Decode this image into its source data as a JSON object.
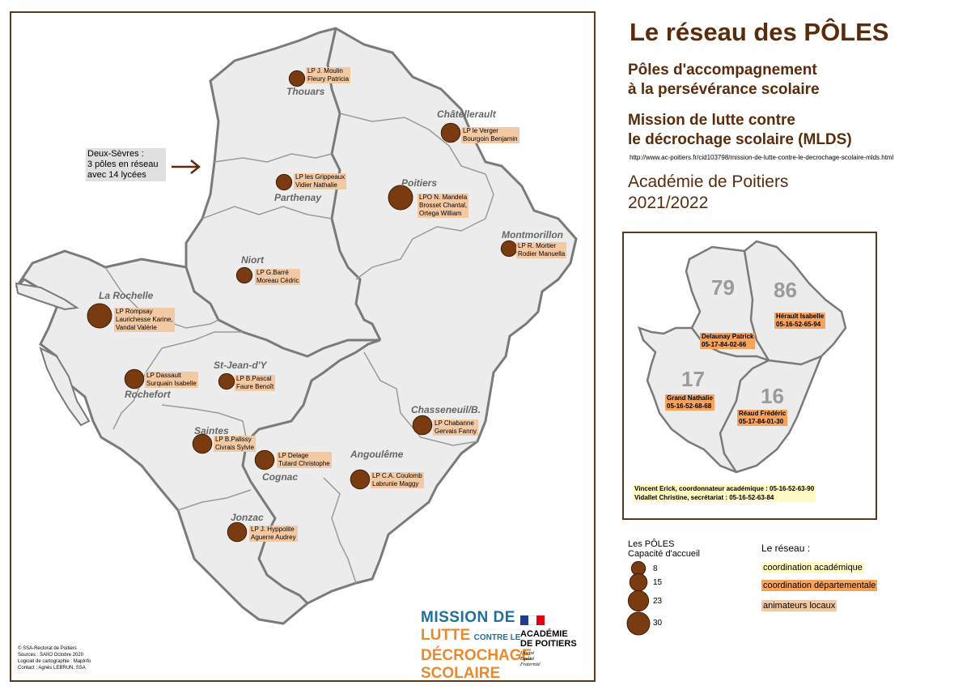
{
  "header": {
    "title": "Le réseau des PÔLES",
    "subtitle1": "Pôles d'accompagnement\nà la persévérance scolaire",
    "subtitle2": "Mission de lutte contre\nle décrochage scolaire (MLDS)",
    "url": "http://www.ac-poitiers.fr/cid103798/mission-de-lutte-contre-le-decrochage-scolaire-mlds.html",
    "academy": "Académie de Poitiers\n2021/2022"
  },
  "note": "Deux-Sèvres :\n3 pôles en réseau\navec 14 lycées",
  "cities": [
    "Thouars",
    "Châtellerault",
    "Poitiers",
    "Parthenay",
    "Montmorillon",
    "Niort",
    "La Rochelle",
    "St-Jean-d'Y",
    "Rochefort",
    "Chasseneuil/B.",
    "Saintes",
    "Angoulême",
    "Cognac",
    "Jonzac"
  ],
  "poles": [
    {
      "label": "LP J. Moulin\nFleury Patricia",
      "capacity": 8
    },
    {
      "label": "LP le Verger\nBourgoin Benjamin",
      "capacity": 15
    },
    {
      "label": "LP les Grippeaux\nVidier Nathalie",
      "capacity": 8
    },
    {
      "label": "LPO N. Mandela\nBrosset Chantal,\nOrtega William",
      "capacity": 30
    },
    {
      "label": "LP R. Mortier\nRodier Manuella",
      "capacity": 8
    },
    {
      "label": "LP G.Barré\nMoreau Cédric",
      "capacity": 8
    },
    {
      "label": "LP Rompsay\nLaurichesse Karine,\nVandal Valérie",
      "capacity": 30
    },
    {
      "label": "LP Dassault\nSurquain Isabelle",
      "capacity": 15
    },
    {
      "label": "LP B.Pascal\nFaure Benoît",
      "capacity": 8
    },
    {
      "label": "LP Chabanne\nGervais Fanny",
      "capacity": 15
    },
    {
      "label": "LP B.Palissy\nCivrais Sylvie",
      "capacity": 15
    },
    {
      "label": "LP Delage\nTutard Christophe",
      "capacity": 15
    },
    {
      "label": "LP C.A. Coulomb\nLabrunie Maggy",
      "capacity": 15
    },
    {
      "label": "LP J. Hyppolite\nAguerre Audrey",
      "capacity": 15
    }
  ],
  "departments": [
    {
      "number": "79",
      "contact": "Delaunay Patrick\n05-17-84-02-66"
    },
    {
      "number": "86",
      "contact": "Hérault Isabelle\n05-16-52-65-94"
    },
    {
      "number": "17",
      "contact": "Grand Nathalie\n05-16-52-68-68"
    },
    {
      "number": "16",
      "contact": "Réaud Frédéric\n05-17-84-01-30"
    }
  ],
  "coordination": "Vincent Erick, coordonnateur académique : 05-16-52-63-90\nVidallet Christine, secrétariat : 05-16-52-63-84",
  "legend": {
    "title": "Les PÔLES\nCapacité d'accueil",
    "values": [
      "8",
      "15",
      "23",
      "30"
    ]
  },
  "network": {
    "title": "Le réseau :",
    "items": [
      {
        "label": "coordination académique",
        "color": "#fff9c4"
      },
      {
        "label": "coordination départementale",
        "color": "#f7a35b"
      },
      {
        "label": "animateurs locaux",
        "color": "#f3c9a4"
      }
    ]
  },
  "credits": "© SSA-Rectorat de Poitiers\nSources : SAIIO Octobre 2020\nLogiciel de cartographie : MapInfo\nContact : Agnès LEBRUN, SSA",
  "logos": {
    "mission_l1": "MISSION DE",
    "mission_l2a": "LUTTE",
    "mission_l2b": "CONTRE LE",
    "mission_l3": "DÉCROCHAGE",
    "mission_l4": "SCOLAIRE",
    "academy_name": "ACADÉMIE\nDE POITIERS",
    "academy_motto": "Liberté\nÉgalité\nFraternité"
  },
  "colors": {
    "brown": "#5a2c0c",
    "dot": "#7a3b10",
    "region": "#ececec",
    "border": "#7a7a7a"
  }
}
